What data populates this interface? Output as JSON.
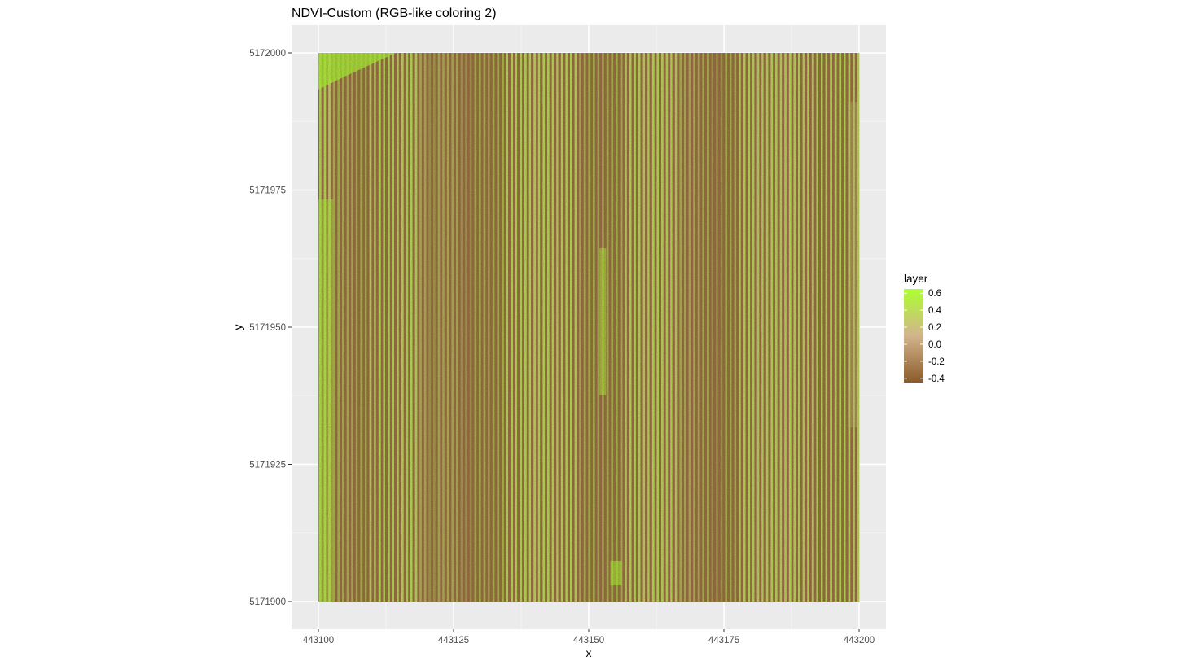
{
  "chart_data": {
    "type": "heatmap",
    "title": "NDVI-Custom (RGB-like coloring 2)",
    "xlabel": "x",
    "ylabel": "y",
    "xlim": [
      443100,
      443200
    ],
    "ylim": [
      5171900,
      5172000
    ],
    "x_ticks": [
      "443100",
      "443125",
      "443150",
      "443175",
      "443200"
    ],
    "y_ticks": [
      "5171900",
      "5171925",
      "5171950",
      "5171975",
      "5172000"
    ],
    "grid": true,
    "legend": {
      "title": "layer",
      "placement": "right",
      "range": [
        -0.45,
        0.65
      ],
      "ticks": [
        "-0.4",
        "-0.2",
        "0.0",
        "0.2",
        "0.4",
        "0.6"
      ],
      "colors": {
        "low": "#8B5A2B",
        "mid": "#D2B48C",
        "high": "#ADFF2F"
      }
    },
    "pattern": {
      "description_values": "vertical crop rows alternating low and high NDVI",
      "row_value_low": -0.3,
      "row_value_high": 0.35,
      "highlight_value": 0.6
    }
  }
}
